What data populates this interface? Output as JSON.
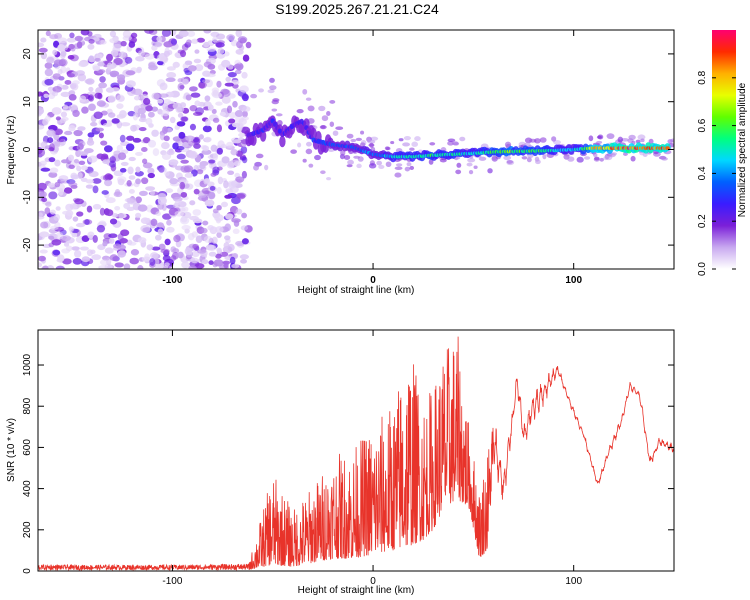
{
  "figure": {
    "title": "S199.2025.267.21.21.C24"
  },
  "chart_data": [
    {
      "type": "heatmap",
      "title": "S199.2025.267.21.21.C24",
      "xlabel": "Height of straight line (km)",
      "ylabel": "Frequency (Hz)",
      "xlim": [
        -167,
        150
      ],
      "ylim": [
        -25,
        25
      ],
      "xticks": [
        -100,
        0,
        100
      ],
      "xtick_labels": [
        "-100",
        "0",
        "100"
      ],
      "yticks": [
        -20,
        -10,
        0,
        10,
        20
      ],
      "ytick_labels": [
        "-20",
        "-10",
        "0",
        "10",
        "20"
      ],
      "colorbar": {
        "label": "Normalized spectral amplitude",
        "range": [
          0,
          1
        ],
        "ticks": [
          0.0,
          0.2,
          0.4,
          0.6,
          0.8
        ],
        "tick_labels": [
          "0.0",
          "0.2",
          "0.4",
          "0.6",
          "0.8"
        ],
        "colormap": [
          "#ffffff",
          "#c8a8f0",
          "#7b1fd8",
          "#3a1cff",
          "#0060ff",
          "#00d8ff",
          "#00ff80",
          "#60ff00",
          "#e8ff00",
          "#ffb000",
          "#ff2a00",
          "#ff0070"
        ]
      },
      "noise_region": {
        "x_range": [
          -167,
          -62
        ],
        "freq_range": [
          -25,
          25
        ],
        "amplitude_range": [
          0.0,
          0.2
        ]
      },
      "signal_ridge": [
        {
          "x": -62,
          "freq": 3,
          "amp": 0.25
        },
        {
          "x": -55,
          "freq": 4,
          "amp": 0.3
        },
        {
          "x": -50,
          "freq": 6,
          "amp": 0.28
        },
        {
          "x": -45,
          "freq": 3,
          "amp": 0.25
        },
        {
          "x": -40,
          "freq": 5,
          "amp": 0.3
        },
        {
          "x": -35,
          "freq": 6,
          "amp": 0.28
        },
        {
          "x": -30,
          "freq": 2,
          "amp": 0.32
        },
        {
          "x": -20,
          "freq": 1,
          "amp": 0.34
        },
        {
          "x": -10,
          "freq": 0.5,
          "amp": 0.36
        },
        {
          "x": 0,
          "freq": -1,
          "amp": 0.4
        },
        {
          "x": 10,
          "freq": -1.5,
          "amp": 0.5
        },
        {
          "x": 20,
          "freq": -1.5,
          "amp": 0.55
        },
        {
          "x": 30,
          "freq": -1.2,
          "amp": 0.6
        },
        {
          "x": 40,
          "freq": -1,
          "amp": 0.55
        },
        {
          "x": 50,
          "freq": -0.8,
          "amp": 0.5
        },
        {
          "x": 60,
          "freq": -0.5,
          "amp": 0.6
        },
        {
          "x": 70,
          "freq": -0.4,
          "amp": 0.65
        },
        {
          "x": 80,
          "freq": -0.3,
          "amp": 0.6
        },
        {
          "x": 90,
          "freq": -0.2,
          "amp": 0.55
        },
        {
          "x": 100,
          "freq": 0,
          "amp": 0.45
        },
        {
          "x": 110,
          "freq": 0.3,
          "amp": 0.8
        },
        {
          "x": 120,
          "freq": 0.3,
          "amp": 0.9
        },
        {
          "x": 130,
          "freq": 0.3,
          "amp": 0.95
        },
        {
          "x": 140,
          "freq": 0.3,
          "amp": 0.92
        },
        {
          "x": 148,
          "freq": 0.3,
          "amp": 0.85
        }
      ]
    },
    {
      "type": "line",
      "xlabel": "Height of straight line (km)",
      "ylabel": "SNR (10 * v/v)",
      "xlim": [
        -167,
        150
      ],
      "ylim": [
        0,
        1170
      ],
      "xticks": [
        -100,
        0,
        100
      ],
      "xtick_labels": [
        "-100",
        "0",
        "100"
      ],
      "yticks": [
        0,
        200,
        400,
        600,
        800,
        1000
      ],
      "ytick_labels": [
        "0",
        "200",
        "400",
        "600",
        "800",
        "1000"
      ],
      "color": "#e8332a",
      "series": [
        {
          "name": "SNR",
          "envelope": [
            {
              "x": -167,
              "low": 5,
              "high": 30
            },
            {
              "x": -100,
              "low": 5,
              "high": 30
            },
            {
              "x": -62,
              "low": 5,
              "high": 35
            },
            {
              "x": -50,
              "low": 30,
              "high": 480
            },
            {
              "x": -40,
              "low": 20,
              "high": 300
            },
            {
              "x": -30,
              "low": 40,
              "high": 420
            },
            {
              "x": -20,
              "low": 60,
              "high": 560
            },
            {
              "x": -10,
              "low": 60,
              "high": 600
            },
            {
              "x": 0,
              "low": 80,
              "high": 720
            },
            {
              "x": 10,
              "low": 100,
              "high": 820
            },
            {
              "x": 18,
              "low": 120,
              "high": 1110
            },
            {
              "x": 25,
              "low": 150,
              "high": 850
            },
            {
              "x": 30,
              "low": 200,
              "high": 900
            },
            {
              "x": 35,
              "low": 300,
              "high": 1080
            },
            {
              "x": 42,
              "low": 350,
              "high": 1170
            },
            {
              "x": 48,
              "low": 300,
              "high": 700
            },
            {
              "x": 53,
              "low": 60,
              "high": 400
            },
            {
              "x": 57,
              "low": 100,
              "high": 600
            },
            {
              "x": 60,
              "low": 500,
              "high": 800
            },
            {
              "x": 65,
              "low": 300,
              "high": 500
            },
            {
              "x": 72,
              "low": 850,
              "high": 1000
            },
            {
              "x": 75,
              "low": 600,
              "high": 700
            },
            {
              "x": 80,
              "low": 700,
              "high": 900
            },
            {
              "x": 85,
              "low": 800,
              "high": 940
            },
            {
              "x": 92,
              "low": 950,
              "high": 1010
            },
            {
              "x": 98,
              "low": 800,
              "high": 840
            },
            {
              "x": 105,
              "low": 640,
              "high": 680
            },
            {
              "x": 112,
              "low": 400,
              "high": 440
            },
            {
              "x": 118,
              "low": 560,
              "high": 620
            },
            {
              "x": 124,
              "low": 700,
              "high": 760
            },
            {
              "x": 128,
              "low": 880,
              "high": 920
            },
            {
              "x": 133,
              "low": 820,
              "high": 880
            },
            {
              "x": 138,
              "low": 500,
              "high": 560
            },
            {
              "x": 143,
              "low": 600,
              "high": 660
            },
            {
              "x": 150,
              "low": 560,
              "high": 620
            }
          ]
        }
      ]
    }
  ]
}
